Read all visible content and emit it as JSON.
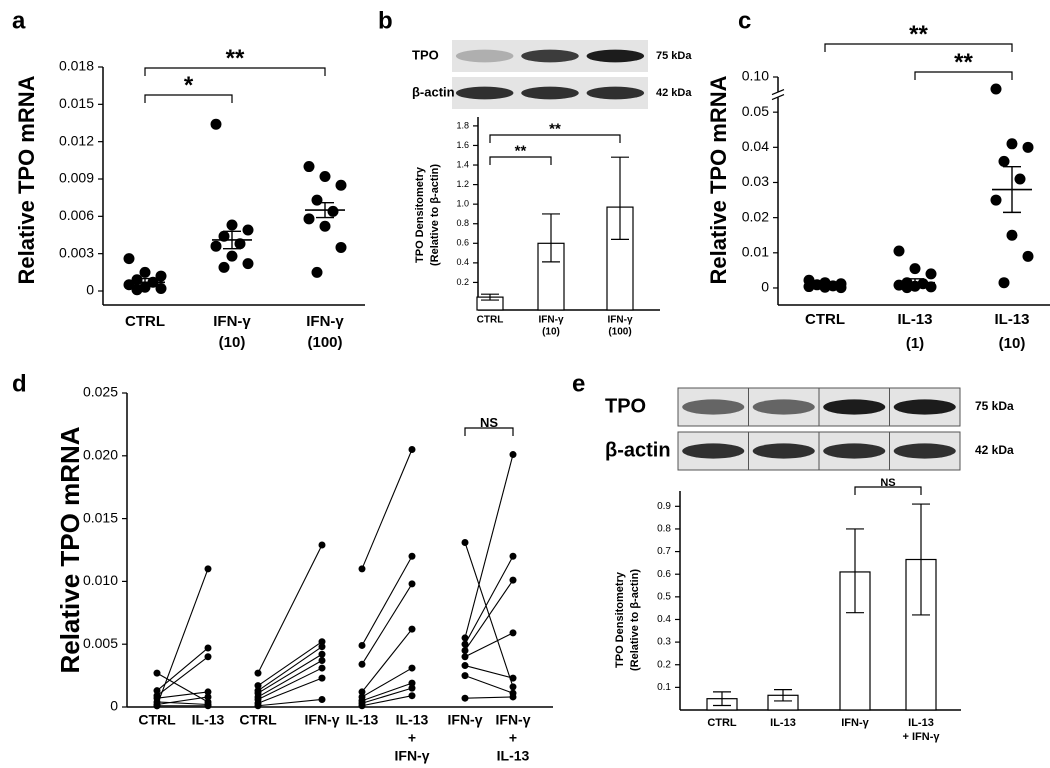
{
  "chart_data": [
    {
      "type": "dotplot",
      "label": "a",
      "ylabel": [
        "Relative TPO mRNA"
      ],
      "categories": [
        [
          "CTRL"
        ],
        [
          "IFN-γ",
          "(10)"
        ],
        [
          "IFN-γ",
          "(100)"
        ]
      ],
      "points": [
        [
          0.0026,
          0.0015,
          0.0012,
          0.0009,
          0.0007,
          0.0005,
          0.0003,
          0.0002,
          0.0001
        ],
        [
          0.0134,
          0.0053,
          0.0049,
          0.0044,
          0.0038,
          0.0036,
          0.0028,
          0.0022,
          0.0019
        ],
        [
          0.01,
          0.0092,
          0.0085,
          0.0073,
          0.0064,
          0.0058,
          0.0052,
          0.0035,
          0.0015
        ]
      ],
      "means": [
        0.0007,
        0.0041,
        0.0065
      ],
      "sem": [
        0.0003,
        0.0007,
        0.0006
      ],
      "ylim": [
        0,
        0.018
      ],
      "yticks": [
        0,
        0.003,
        0.006,
        0.009,
        0.012,
        0.015,
        0.018
      ],
      "brackets": [
        {
          "from": 0,
          "to": 1,
          "label": "*"
        },
        {
          "from": 0,
          "to": 2,
          "label": "**"
        }
      ],
      "color": "#000000"
    },
    {
      "type": "bar",
      "label": "b",
      "ylabel": [
        "TPO Densitometry",
        "(Relative to β-actin)"
      ],
      "blot": [
        {
          "label": "TPO",
          "size": "75 kDa"
        },
        {
          "label": "β-actin",
          "size": "42 kDa"
        }
      ],
      "categories": [
        [
          "CTRL"
        ],
        [
          "IFN-γ",
          "(10)"
        ],
        [
          "IFN-γ",
          "(100)"
        ]
      ],
      "values": [
        0.05,
        0.6,
        0.97
      ],
      "lower": [
        0.02,
        0.41,
        0.64
      ],
      "upper": [
        0.08,
        0.9,
        1.48
      ],
      "ylim": [
        0,
        1.85
      ],
      "yticks": [
        0.2,
        0.4,
        0.6,
        0.8,
        {
          "value": 1,
          "label": "1.0"
        },
        1.2,
        1.4,
        1.6,
        1.8
      ],
      "brackets": [
        {
          "from": 0,
          "to": 1,
          "label": "**"
        },
        {
          "from": 0,
          "to": 2,
          "label": "**"
        }
      ],
      "color": "#ffffff"
    },
    {
      "type": "dotplot",
      "label": "c",
      "ylabel": [
        "Relative TPO mRNA"
      ],
      "categories": [
        [
          "CTRL"
        ],
        [
          "IL-13",
          "(1)"
        ],
        [
          "IL-13",
          "(10)"
        ]
      ],
      "points": [
        [
          0.0022,
          0.0015,
          0.0012,
          0.0009,
          0.0006,
          0.0004,
          0.0002,
          0.0001
        ],
        [
          0.0105,
          0.0055,
          0.004,
          0.0015,
          0.0012,
          0.0008,
          0.0005,
          0.0003,
          0.0001
        ],
        [
          0.083,
          0.041,
          0.04,
          0.036,
          0.031,
          0.025,
          0.015,
          0.009,
          0.0015
        ]
      ],
      "means": [
        0.001,
        0.0015,
        0.028
      ],
      "sem": [
        0.0003,
        0.0011,
        0.0065
      ],
      "ylim": [
        -0.002,
        0.1
      ],
      "axis_break": [
        0.05,
        0.1
      ],
      "yticks": [
        0,
        0.01,
        0.02,
        0.03,
        0.04,
        0.05,
        {
          "value": 0.1,
          "label": "0.10"
        }
      ],
      "brackets": [
        {
          "from": 0,
          "to": 2,
          "label": "**"
        },
        {
          "from": 1,
          "to": 2,
          "label": "**"
        }
      ],
      "color": "#000000"
    },
    {
      "type": "slopegraph",
      "label": "d",
      "ylabel": [
        "Relative TPO mRNA"
      ],
      "groups": [
        {
          "categories": [
            [
              "CTRL"
            ],
            [
              "IL-13"
            ]
          ],
          "pairs": [
            [
              0.0001,
              0.011
            ],
            [
              0.0027,
              0.0004
            ],
            [
              0.0013,
              0.0047
            ],
            [
              0.0009,
              0.004
            ],
            [
              0.0007,
              0.0012
            ],
            [
              0.0004,
              0.0002
            ],
            [
              0.0002,
              0.0008
            ],
            [
              0.0001,
              0.0001
            ]
          ]
        },
        {
          "categories": [
            [
              "CTRL"
            ],
            [
              "IFN-γ"
            ]
          ],
          "pairs": [
            [
              0.0027,
              0.0129
            ],
            [
              0.0017,
              0.0052
            ],
            [
              0.0013,
              0.0048
            ],
            [
              0.0011,
              0.0042
            ],
            [
              0.0008,
              0.0037
            ],
            [
              0.0006,
              0.0031
            ],
            [
              0.0003,
              0.0023
            ],
            [
              0.0001,
              0.0006
            ]
          ]
        },
        {
          "categories": [
            [
              "IL-13"
            ],
            [
              "IL-13",
              "+",
              "IFN-γ"
            ]
          ],
          "pairs": [
            [
              0.011,
              0.0205
            ],
            [
              0.0049,
              0.012
            ],
            [
              0.0034,
              0.0098
            ],
            [
              0.0012,
              0.0062
            ],
            [
              0.0008,
              0.0031
            ],
            [
              0.0005,
              0.0019
            ],
            [
              0.0003,
              0.0015
            ],
            [
              0.0001,
              0.0009
            ]
          ]
        },
        {
          "categories": [
            [
              "IFN-γ"
            ],
            [
              "IFN-γ",
              "+",
              "IL-13"
            ]
          ],
          "pairs": [
            [
              0.0131,
              0.0016
            ],
            [
              0.0055,
              0.0201
            ],
            [
              0.005,
              0.012
            ],
            [
              0.0045,
              0.0101
            ],
            [
              0.004,
              0.0059
            ],
            [
              0.0033,
              0.0023
            ],
            [
              0.0025,
              0.0011
            ],
            [
              0.0007,
              0.0008
            ]
          ]
        }
      ],
      "ylim": [
        0,
        0.025
      ],
      "yticks": [
        0,
        0.005,
        {
          "value": 0.01,
          "label": "0.010"
        },
        0.015,
        {
          "value": 0.02,
          "label": "0.020"
        },
        0.025
      ],
      "brackets": [
        {
          "group": 3,
          "label": "NS"
        }
      ],
      "color": "#000000"
    },
    {
      "type": "bar",
      "label": "e",
      "ylabel": [
        "TPO Densitometry",
        "(Relative to β-actin)"
      ],
      "blot": [
        {
          "label": "TPO",
          "size": "75 kDa"
        },
        {
          "label": "β-actin",
          "size": "42 kDa"
        }
      ],
      "categories": [
        [
          "CTRL"
        ],
        [
          "IL-13"
        ],
        [
          "IFN-γ"
        ],
        [
          "IL-13",
          "+ IFN-γ"
        ]
      ],
      "values": [
        0.05,
        0.065,
        0.61,
        0.665
      ],
      "lower": [
        0.02,
        0.04,
        0.43,
        0.42
      ],
      "upper": [
        0.08,
        0.09,
        0.8,
        0.91
      ],
      "ylim": [
        0,
        0.95
      ],
      "yticks": [
        0.1,
        0.2,
        0.3,
        0.4,
        0.5,
        0.6,
        0.7,
        0.8,
        0.9
      ],
      "brackets": [
        {
          "from": 2,
          "to": 3,
          "label": "NS"
        }
      ],
      "color": "#ffffff"
    }
  ]
}
